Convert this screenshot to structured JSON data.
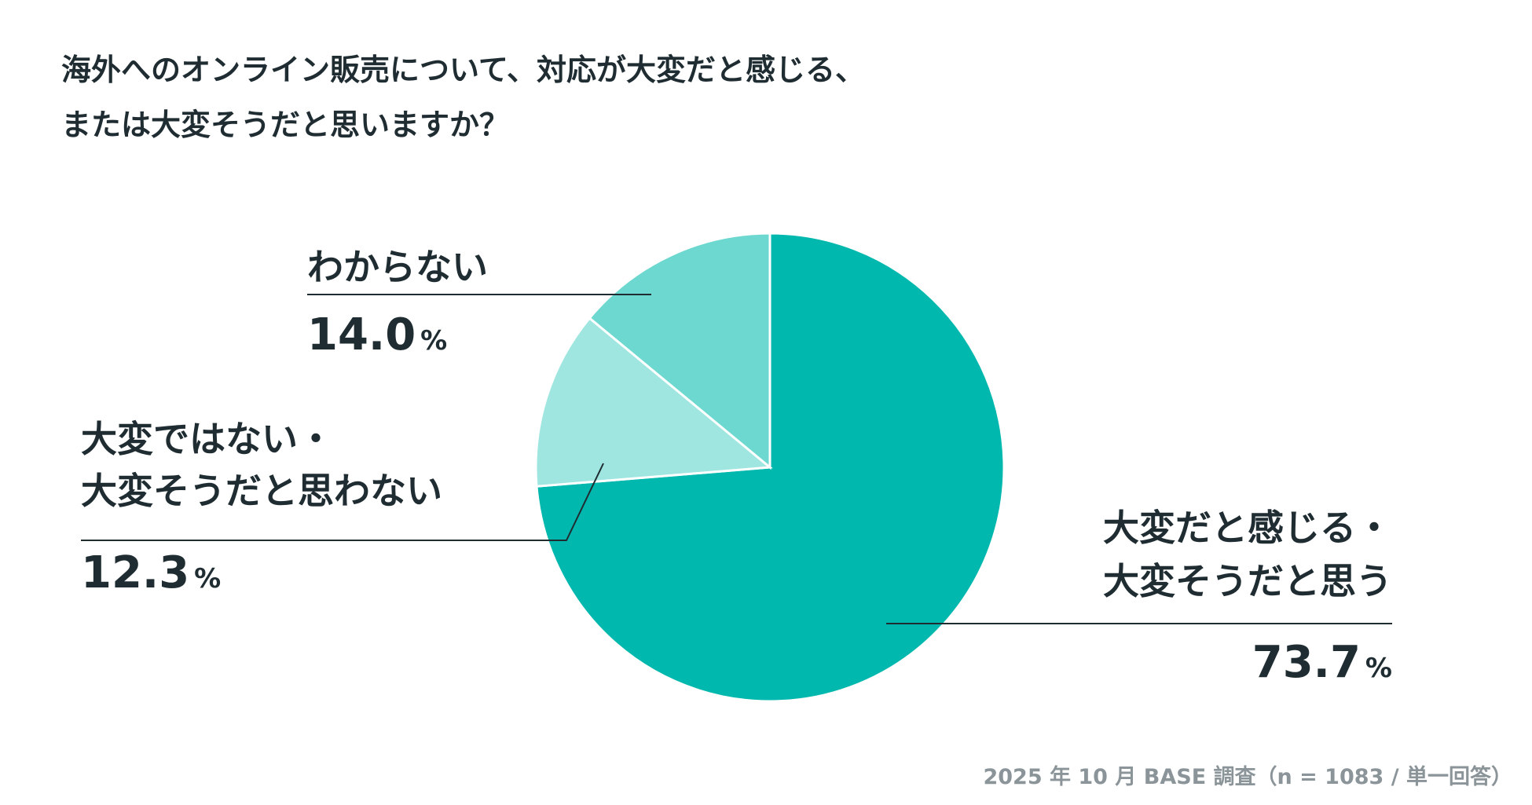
{
  "chart_data": {
    "type": "pie",
    "title": [
      "海外へのオンライン販売について、対応が大変だと感じる、",
      "または大変そうだと思いますか？"
    ],
    "categories": [
      "大変だと感じる・\n大変そうだと思う",
      "大変ではない・\n大変そうだと思わない",
      "わからない"
    ],
    "values": [
      73.7,
      12.3,
      14.0
    ],
    "value_labels": [
      "73.7%",
      "12.3%",
      "14.0%"
    ],
    "colors": [
      "#00b8ad",
      "#a0e6e0",
      "#6dd8cf"
    ],
    "note": "2025 年 10 月 BASE 調査（n = 1083 / 単一回答）"
  }
}
